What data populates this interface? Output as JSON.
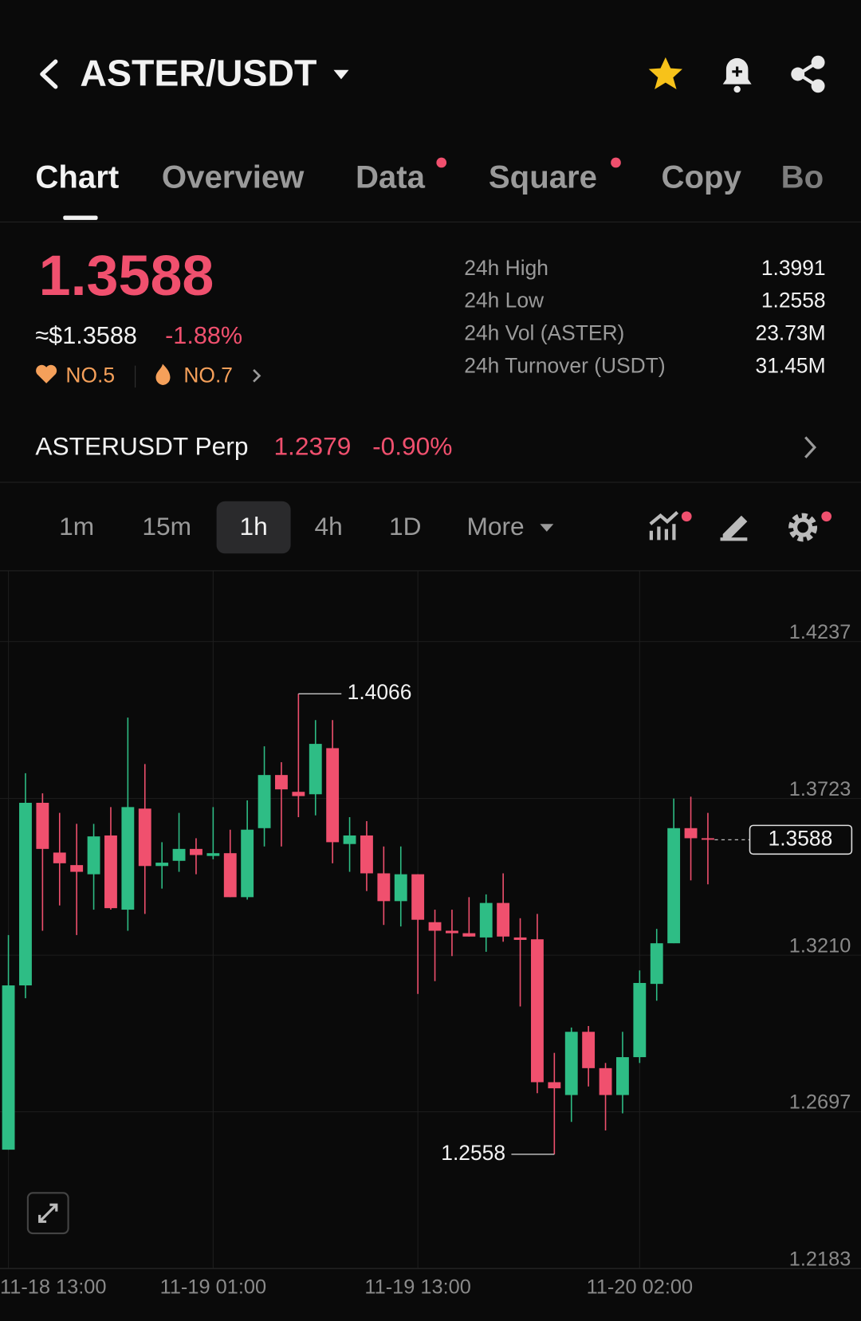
{
  "header": {
    "title": "ASTER/USDT"
  },
  "tabs": [
    "Chart",
    "Overview",
    "Data",
    "Square",
    "Copy",
    "Bo"
  ],
  "price": {
    "last": "1.3588",
    "usd": "≈$1.3588",
    "change": "-1.88%",
    "ranks": [
      "NO.5",
      "NO.7"
    ]
  },
  "stats": [
    {
      "label": "24h High",
      "value": "1.3991"
    },
    {
      "label": "24h Low",
      "value": "1.2558"
    },
    {
      "label": "24h Vol (ASTER)",
      "value": "23.73M"
    },
    {
      "label": "24h Turnover (USDT)",
      "value": "31.45M"
    }
  ],
  "perp": {
    "name": "ASTERUSDT Perp",
    "price": "1.2379",
    "change": "-0.90%"
  },
  "intervals": [
    "1m",
    "15m",
    "1h",
    "4h",
    "1D",
    "More"
  ],
  "chart_data": {
    "type": "candlestick",
    "categories": [
      "11-18 13:00",
      null,
      null,
      null,
      null,
      null,
      null,
      null,
      null,
      null,
      null,
      null,
      "11-19 01:00",
      null,
      null,
      null,
      null,
      null,
      null,
      null,
      null,
      null,
      null,
      null,
      "11-19 13:00",
      null,
      null,
      null,
      null,
      null,
      null,
      null,
      null,
      null,
      null,
      null,
      null,
      "11-20 02:00",
      null,
      null,
      null,
      null
    ],
    "open": [
      1.2573,
      1.3111,
      1.3709,
      1.3546,
      1.3505,
      1.3475,
      1.3602,
      1.3359,
      1.369,
      1.3502,
      1.3519,
      1.3558,
      1.3535,
      1.3544,
      1.34,
      1.3626,
      1.38,
      1.3745,
      1.3737,
      1.3888,
      1.3574,
      1.3602,
      1.3478,
      1.3387,
      1.3475,
      1.3318,
      1.329,
      1.3282,
      1.3268,
      1.3381,
      1.3268,
      1.3262,
      1.2794,
      1.2752,
      1.2959,
      1.284,
      1.2752,
      1.2876,
      1.3116,
      1.3249,
      1.3626,
      1.3593
    ],
    "high": [
      1.3276,
      1.3806,
      1.374,
      1.3676,
      1.364,
      1.364,
      1.3695,
      1.3988,
      1.3836,
      1.358,
      1.3676,
      1.3593,
      1.3695,
      1.3621,
      1.3717,
      1.3894,
      1.3842,
      1.4066,
      1.398,
      1.398,
      1.3662,
      1.3649,
      1.3566,
      1.3566,
      1.3475,
      1.3359,
      1.3359,
      1.34,
      1.3409,
      1.3478,
      1.3331,
      1.3345,
      1.289,
      1.2973,
      1.2978,
      1.2857,
      1.2959,
      1.316,
      1.3296,
      1.3723,
      1.3729,
      1.3676
    ],
    "low": [
      1.2573,
      1.3069,
      1.329,
      1.3373,
      1.3276,
      1.3359,
      1.3359,
      1.329,
      1.3345,
      1.3428,
      1.3483,
      1.3475,
      1.3524,
      1.34,
      1.3392,
      1.3566,
      1.3566,
      1.3662,
      1.3668,
      1.3511,
      1.3483,
      1.342,
      1.3309,
      1.3304,
      1.3083,
      1.3125,
      1.3207,
      1.3271,
      1.3221,
      1.3254,
      1.3042,
      1.2758,
      1.2558,
      1.2664,
      1.278,
      1.2636,
      1.2692,
      1.2857,
      1.3061,
      1.3249,
      1.3455,
      1.3442
    ],
    "close": [
      1.3111,
      1.3709,
      1.3558,
      1.3511,
      1.3483,
      1.3599,
      1.3364,
      1.3695,
      1.3502,
      1.3513,
      1.3558,
      1.3538,
      1.3544,
      1.34,
      1.3621,
      1.38,
      1.3753,
      1.3731,
      1.3902,
      1.358,
      1.3602,
      1.3478,
      1.3387,
      1.3475,
      1.3326,
      1.329,
      1.3282,
      1.3271,
      1.3381,
      1.3271,
      1.326,
      1.2794,
      1.2774,
      1.2959,
      1.284,
      1.2752,
      1.2876,
      1.3119,
      1.3249,
      1.3626,
      1.3593,
      1.3588
    ],
    "up_color": "#2ebd85",
    "down_color": "#f0506e",
    "ylim": [
      1.2183,
      1.4462
    ],
    "yticks": [
      1.2183,
      1.2697,
      {
        "value": 1.321,
        "label": "1.3210"
      },
      1.3723,
      1.4237
    ],
    "grid": true,
    "max_label": 1.4066,
    "min_label": 1.2558,
    "last_price": 1.3588
  }
}
